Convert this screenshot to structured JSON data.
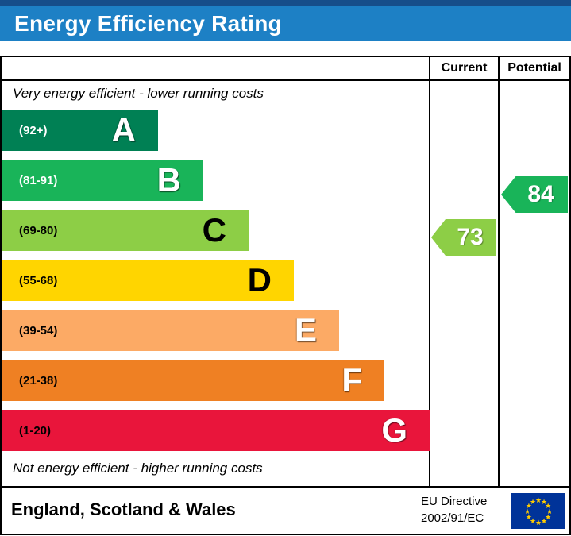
{
  "header": {
    "title": "Energy Efficiency Rating",
    "bar_color": "#1d80c5",
    "strip_color": "#164e8a",
    "title_color": "#ffffff"
  },
  "table": {
    "current_label": "Current",
    "potential_label": "Potential",
    "top_note": "Very energy efficient - lower running costs",
    "bottom_note": "Not energy efficient - higher running costs"
  },
  "bands": [
    {
      "letter": "A",
      "range": "(92+)",
      "color": "#008054",
      "range_color": "#ffffff",
      "letter_color": "#ffffff"
    },
    {
      "letter": "B",
      "range": "(81-91)",
      "color": "#19b459",
      "range_color": "#ffffff",
      "letter_color": "#ffffff"
    },
    {
      "letter": "C",
      "range": "(69-80)",
      "color": "#8dce46",
      "range_color": "#000000",
      "letter_color": "#000000"
    },
    {
      "letter": "D",
      "range": "(55-68)",
      "color": "#ffd500",
      "range_color": "#000000",
      "letter_color": "#000000"
    },
    {
      "letter": "E",
      "range": "(39-54)",
      "color": "#fcaa65",
      "range_color": "#000000",
      "letter_color": "#ffffff"
    },
    {
      "letter": "F",
      "range": "(21-38)",
      "color": "#ef8023",
      "range_color": "#000000",
      "letter_color": "#ffffff"
    },
    {
      "letter": "G",
      "range": "(1-20)",
      "color": "#e9153b",
      "range_color": "#000000",
      "letter_color": "#ffffff"
    }
  ],
  "ratings": {
    "current": {
      "value": "73",
      "band": "C",
      "color": "#8dce46"
    },
    "potential": {
      "value": "84",
      "band": "B",
      "color": "#19b459"
    }
  },
  "footer": {
    "region": "England, Scotland & Wales",
    "directive_line1": "EU Directive",
    "directive_line2": "2002/91/EC",
    "eu_flag": {
      "background": "#003399",
      "star_color": "#ffcc00",
      "star_glyph": "★"
    }
  },
  "chart_data": {
    "type": "bar",
    "title": "Energy Efficiency Rating",
    "categories": [
      "A (92+)",
      "B (81-91)",
      "C (69-80)",
      "D (55-68)",
      "E (39-54)",
      "F (21-38)",
      "G (1-20)"
    ],
    "band_colors": [
      "#008054",
      "#19b459",
      "#8dce46",
      "#ffd500",
      "#fcaa65",
      "#ef8023",
      "#e9153b"
    ],
    "series": [
      {
        "name": "Current",
        "value": 73,
        "band": "C"
      },
      {
        "name": "Potential",
        "value": 84,
        "band": "B"
      }
    ],
    "annotations": [
      "Very energy efficient - lower running costs",
      "Not energy efficient - higher running costs"
    ],
    "region": "England, Scotland & Wales",
    "directive": "EU Directive 2002/91/EC"
  }
}
